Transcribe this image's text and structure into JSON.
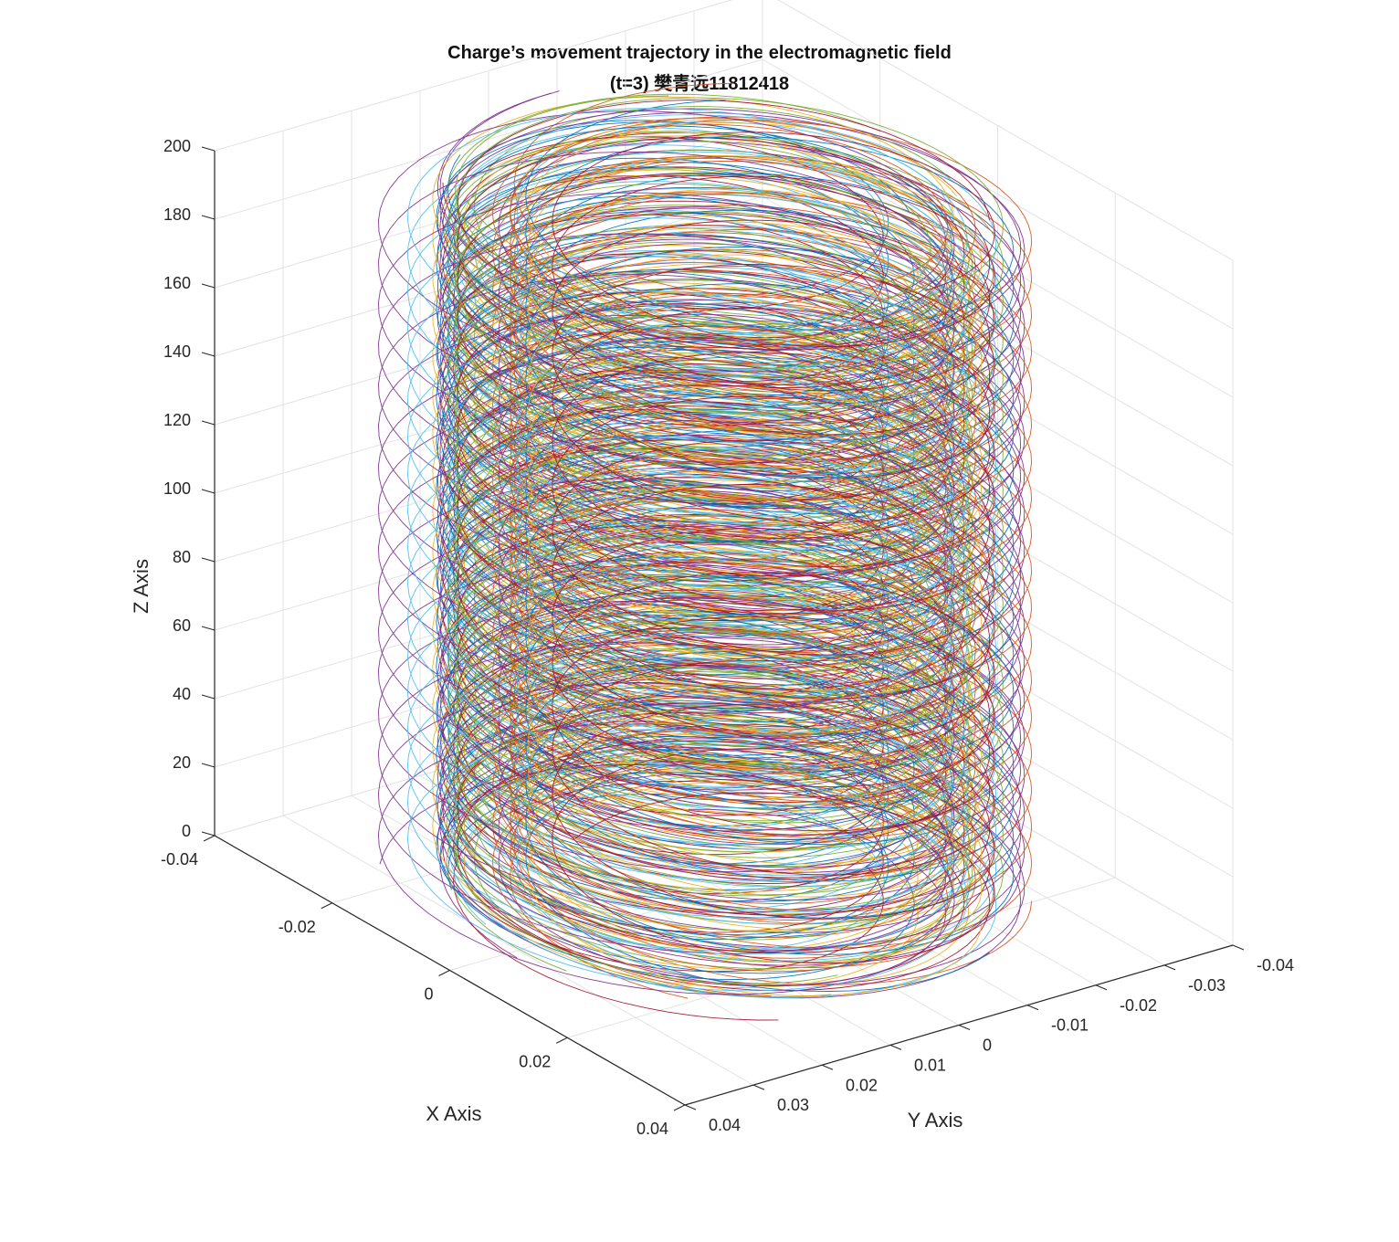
{
  "chart_data": {
    "type": "line",
    "plot_kind": "3d-helical-trajectories",
    "title": "Charge’s movement trajectory in the electromagnetic field",
    "subtitle": "(t=3) 樊青远11812418",
    "xlabel": "X Axis",
    "ylabel": "Y Axis",
    "zlabel": "Z Axis",
    "xlim": [
      -0.04,
      0.04
    ],
    "ylim": [
      -0.04,
      0.04
    ],
    "zlim": [
      0,
      200
    ],
    "x_ticks": [
      "-0.04",
      "-0.02",
      "0",
      "0.02",
      "0.04"
    ],
    "y_ticks": [
      "0.04",
      "0.03",
      "0.02",
      "0.01",
      "0",
      "-0.01",
      "-0.02",
      "-0.03",
      "-0.04"
    ],
    "z_ticks": [
      "0",
      "20",
      "40",
      "60",
      "80",
      "100",
      "120",
      "140",
      "160",
      "180",
      "200"
    ],
    "grid": true,
    "series_colors": [
      "#0072BD",
      "#D95319",
      "#EDB120",
      "#7E2F8E",
      "#77AC30",
      "#4DBEEE",
      "#A2142F"
    ],
    "series_count": 28,
    "helix": {
      "radius_min": 0.022,
      "radius_max": 0.033,
      "center_offset_max": 0.008,
      "z_max": 200,
      "turns_min": 15,
      "turns_max": 21
    }
  }
}
